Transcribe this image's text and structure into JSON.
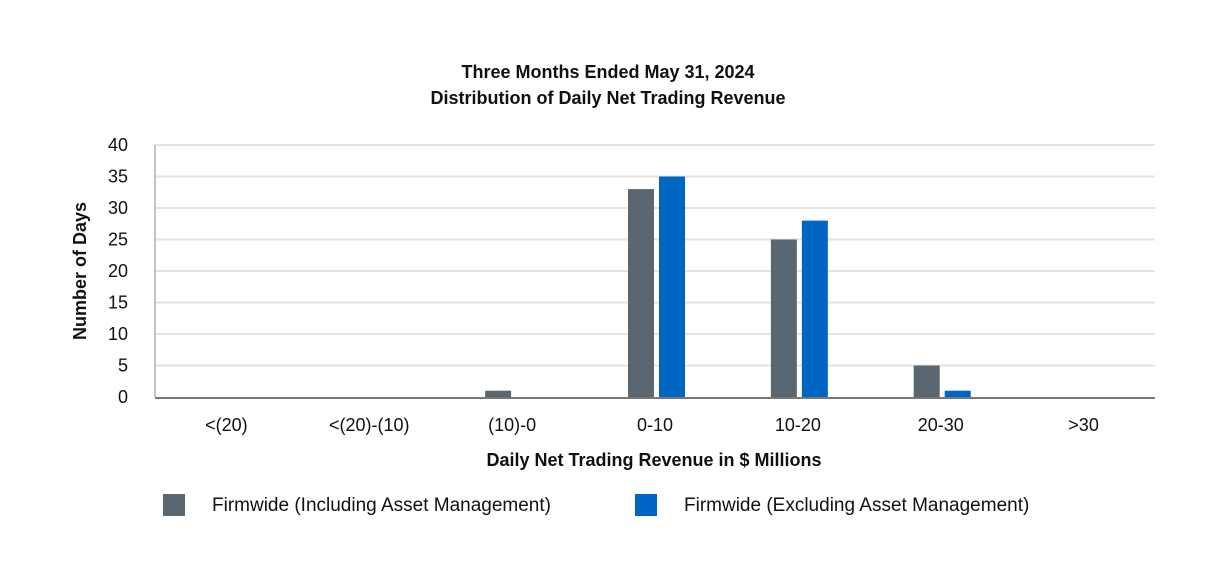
{
  "chart_data": {
    "type": "bar",
    "title": "Three Months Ended May 31, 2024",
    "subtitle": "Distribution of Daily Net Trading Revenue",
    "xlabel": "Daily Net Trading Revenue in $ Millions",
    "ylabel": "Number of Days",
    "ylim": [
      0,
      40
    ],
    "yticks": [
      0,
      5,
      10,
      15,
      20,
      25,
      30,
      35,
      40
    ],
    "grid": true,
    "legend_position": "bottom",
    "categories": [
      "<(20)",
      "<(20)-(10)",
      "(10)-0",
      "0-10",
      "10-20",
      "20-30",
      ">30"
    ],
    "series": [
      {
        "name": "Firmwide (Including Asset Management)",
        "color": "#5a6670",
        "values": [
          0,
          0,
          1,
          33,
          25,
          5,
          0
        ]
      },
      {
        "name": "Firmwide (Excluding Asset Management)",
        "color": "#0066c4",
        "values": [
          0,
          0,
          0,
          35,
          28,
          1,
          0
        ]
      }
    ]
  }
}
